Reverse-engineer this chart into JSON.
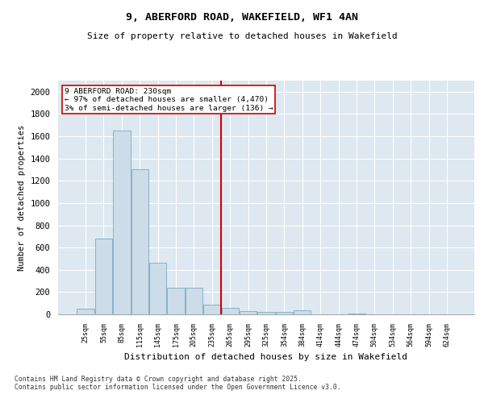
{
  "title": "9, ABERFORD ROAD, WAKEFIELD, WF1 4AN",
  "subtitle": "Size of property relative to detached houses in Wakefield",
  "xlabel": "Distribution of detached houses by size in Wakefield",
  "ylabel": "Number of detached properties",
  "categories": [
    "25sqm",
    "55sqm",
    "85sqm",
    "115sqm",
    "145sqm",
    "175sqm",
    "205sqm",
    "235sqm",
    "265sqm",
    "295sqm",
    "325sqm",
    "354sqm",
    "384sqm",
    "414sqm",
    "444sqm",
    "474sqm",
    "504sqm",
    "534sqm",
    "564sqm",
    "594sqm",
    "624sqm"
  ],
  "values": [
    50,
    680,
    1650,
    1300,
    460,
    240,
    240,
    90,
    55,
    30,
    25,
    20,
    35,
    0,
    0,
    5,
    0,
    0,
    0,
    0,
    0
  ],
  "bar_color": "#ccdce8",
  "bar_edge_color": "#7aaac8",
  "vline_x": 7.5,
  "vline_color": "#cc0000",
  "annotation_text": "9 ABERFORD ROAD: 230sqm\n← 97% of detached houses are smaller (4,470)\n3% of semi-detached houses are larger (136) →",
  "annotation_box_color": "#cc0000",
  "ylim": [
    0,
    2100
  ],
  "yticks": [
    0,
    200,
    400,
    600,
    800,
    1000,
    1200,
    1400,
    1600,
    1800,
    2000
  ],
  "bg_color": "#dde8f0",
  "footer_line1": "Contains HM Land Registry data © Crown copyright and database right 2025.",
  "footer_line2": "Contains public sector information licensed under the Open Government Licence v3.0."
}
